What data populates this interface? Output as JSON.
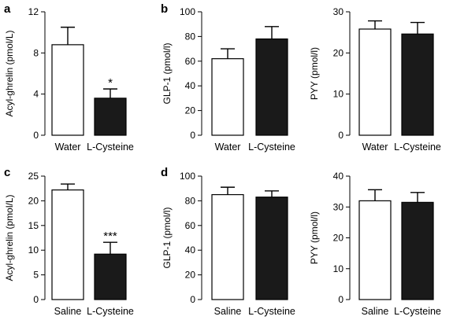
{
  "chart_data": [
    {
      "type": "bar",
      "panel": "a",
      "ylabel": "Acyl-ghrelin (pmol/L)",
      "categories": [
        "Water",
        "L-Cysteine"
      ],
      "values": [
        8.8,
        3.6
      ],
      "errors": [
        1.7,
        0.9
      ],
      "ylim": [
        0,
        12
      ],
      "yticks": [
        "0",
        "4",
        "8",
        "12"
      ],
      "annotations": [
        "",
        "*"
      ]
    },
    {
      "type": "bar",
      "panel": "b",
      "ylabel": "GLP-1 (pmol/l)",
      "categories": [
        "Water",
        "L-Cysteine"
      ],
      "values": [
        62,
        78
      ],
      "errors": [
        8,
        10
      ],
      "ylim": [
        0,
        100
      ],
      "yticks": [
        "0",
        "20",
        "40",
        "60",
        "80",
        "100"
      ],
      "annotations": [
        "",
        ""
      ]
    },
    {
      "type": "bar",
      "panel": "",
      "ylabel": "PYY (pmol/l)",
      "categories": [
        "Water",
        "L-Cysteine"
      ],
      "values": [
        25.8,
        24.6
      ],
      "errors": [
        2.0,
        2.8
      ],
      "ylim": [
        0,
        30
      ],
      "yticks": [
        "0",
        "10",
        "20",
        "30"
      ],
      "annotations": [
        "",
        ""
      ]
    },
    {
      "type": "bar",
      "panel": "c",
      "ylabel": "Acyl-ghrelin (pmol/L)",
      "categories": [
        "Saline",
        "L-Cysteine"
      ],
      "values": [
        22.2,
        9.2
      ],
      "errors": [
        1.2,
        2.4
      ],
      "ylim": [
        0,
        25
      ],
      "yticks": [
        "0",
        "5",
        "10",
        "15",
        "20",
        "25"
      ],
      "annotations": [
        "",
        "***"
      ]
    },
    {
      "type": "bar",
      "panel": "d",
      "ylabel": "GLP-1 (pmol/l)",
      "categories": [
        "Saline",
        "L-Cysteine"
      ],
      "values": [
        85,
        83
      ],
      "errors": [
        6,
        5
      ],
      "ylim": [
        0,
        100
      ],
      "yticks": [
        "0",
        "20",
        "40",
        "60",
        "80",
        "100"
      ],
      "annotations": [
        "",
        ""
      ]
    },
    {
      "type": "bar",
      "panel": "",
      "ylabel": "PYY (pmol/l)",
      "categories": [
        "Saline",
        "L-Cysteine"
      ],
      "values": [
        32,
        31.5
      ],
      "errors": [
        3.6,
        3.2
      ],
      "ylim": [
        0,
        40
      ],
      "yticks": [
        "0",
        "10",
        "20",
        "30",
        "40"
      ],
      "annotations": [
        "",
        ""
      ]
    }
  ],
  "colors": {
    "group1": "#ffffff",
    "group2": "#1a1a1a",
    "axis": "#000000"
  }
}
